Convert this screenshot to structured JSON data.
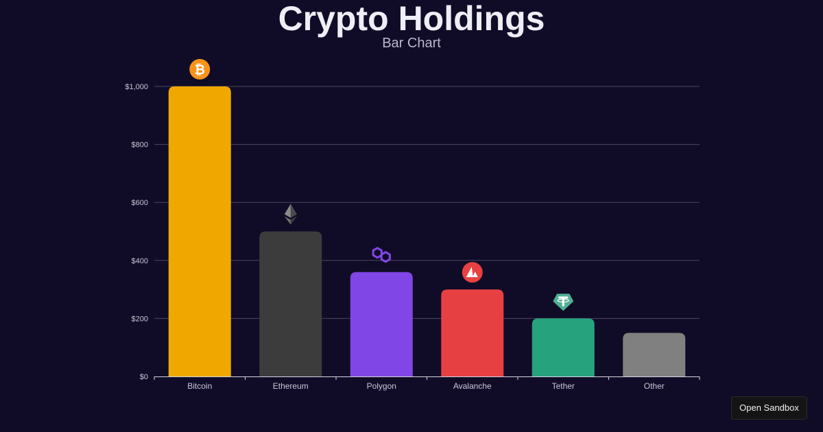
{
  "title": "Crypto Holdings",
  "subtitle": "Bar Chart",
  "sandbox_button": "Open Sandbox",
  "chart_data": {
    "type": "bar",
    "categories": [
      "Bitcoin",
      "Ethereum",
      "Polygon",
      "Avalanche",
      "Tether",
      "Other"
    ],
    "values": [
      1000,
      500,
      360,
      300,
      200,
      150
    ],
    "colors": [
      "#f0a800",
      "#3c3c3c",
      "#8046e6",
      "#e64042",
      "#26a37d",
      "#808080"
    ],
    "icons": [
      "bitcoin-icon",
      "ethereum-icon",
      "polygon-icon",
      "avalanche-icon",
      "tether-icon",
      null
    ],
    "y_ticks": [
      "$0",
      "$200",
      "$400",
      "$600",
      "$800",
      "$1,000"
    ],
    "y_tick_values": [
      0,
      200,
      400,
      600,
      800,
      1000
    ],
    "ylim": [
      0,
      1000
    ],
    "xlabel": "",
    "ylabel": "",
    "grid": true
  }
}
